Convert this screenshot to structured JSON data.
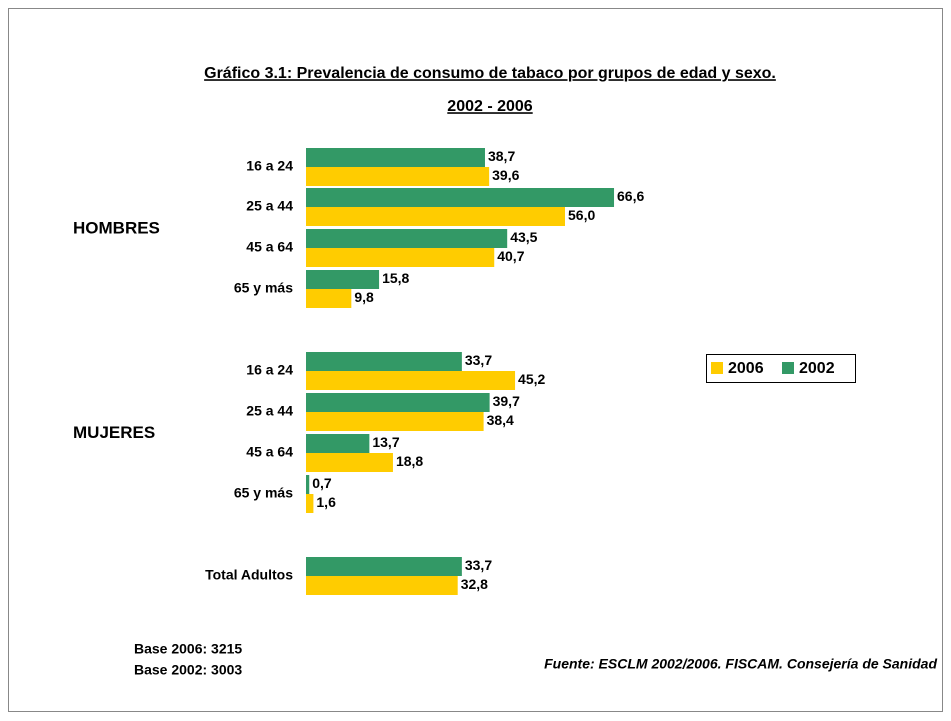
{
  "chart_data": {
    "type": "bar",
    "orientation": "horizontal",
    "title": "Gráfico 3.1: Prevalencia de consumo de tabaco por grupos de edad y sexo.",
    "subtitle": "2002 - 2006",
    "categories": [
      "16 a 24",
      "25 a 44",
      "45 a 64",
      "65 y más",
      "16 a 24",
      "25 a 44",
      "45 a 64",
      "65 y más",
      "Total Adultos"
    ],
    "groups": [
      "HOMBRES",
      "MUJERES"
    ],
    "series": [
      {
        "name": "2006",
        "color": "#ffcc00",
        "values": [
          39.6,
          56.0,
          40.7,
          9.8,
          45.2,
          38.4,
          18.8,
          1.6,
          32.8
        ],
        "value_labels": [
          "39,6",
          "56,0",
          "40,7",
          "9,8",
          "45,2",
          "38,4",
          "18,8",
          "1,6",
          "32,8"
        ]
      },
      {
        "name": "2002",
        "color": "#339966",
        "values": [
          38.7,
          66.6,
          43.5,
          15.8,
          33.7,
          39.7,
          13.7,
          0.7,
          33.7
        ],
        "value_labels": [
          "38,7",
          "66,6",
          "43,5",
          "15,8",
          "33,7",
          "39,7",
          "13,7",
          "0,7",
          "33,7"
        ]
      }
    ],
    "legend": "right",
    "notes": [
      "Base 2006: 3215",
      "Base 2002: 3003"
    ],
    "source": "Fuente: ESCLM 2002/2006. FISCAM. Consejería de Sanidad"
  }
}
